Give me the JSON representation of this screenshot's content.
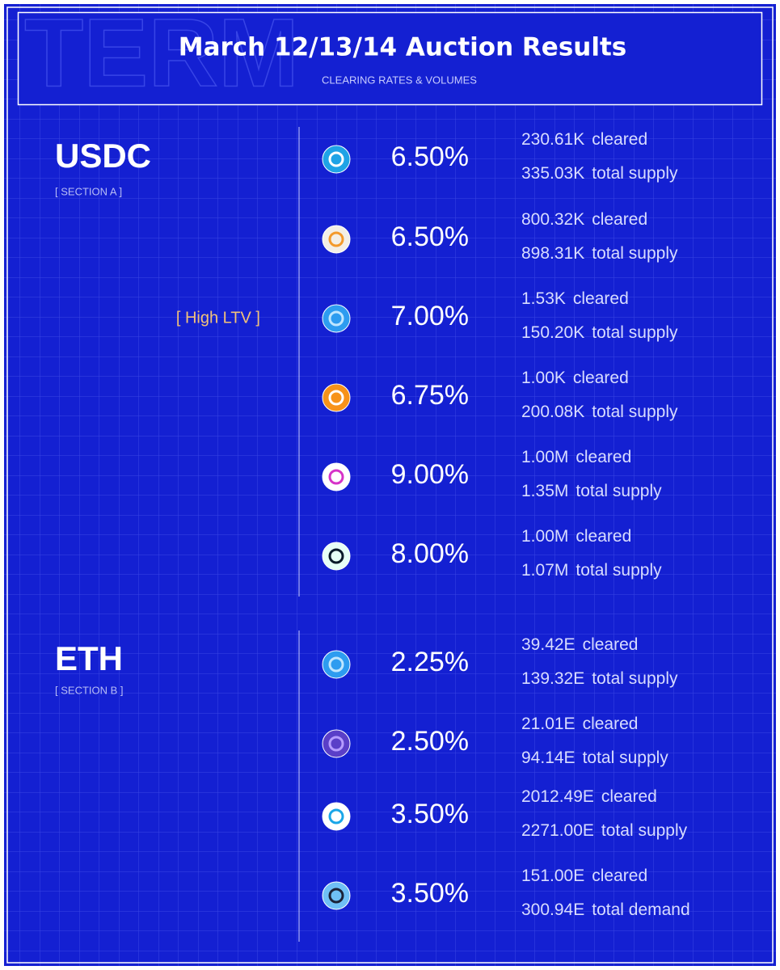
{
  "header": {
    "watermark": "TERM",
    "title": "March 12/13/14 Auction Results",
    "subtitle": "CLEARING RATES & VOLUMES"
  },
  "sections": [
    {
      "name": "USDC",
      "label": "[ SECTION A ]",
      "rows": [
        {
          "rate": "6.50%",
          "lines": [
            [
              "230.61K",
              "cleared"
            ],
            [
              "335.03K",
              "total supply"
            ]
          ]
        },
        {
          "rate": "6.50%",
          "lines": [
            [
              "800.32K",
              "cleared"
            ],
            [
              "898.31K",
              "total supply"
            ]
          ]
        },
        {
          "note": "[ High LTV ]",
          "rate": "7.00%",
          "lines": [
            [
              "1.53K",
              "cleared"
            ],
            [
              "150.20K",
              "total supply"
            ]
          ]
        },
        {
          "rate": "6.75%",
          "lines": [
            [
              "1.00K",
              "cleared"
            ],
            [
              "200.08K",
              "total supply"
            ]
          ]
        },
        {
          "rate": "9.00%",
          "lines": [
            [
              "1.00M",
              "cleared"
            ],
            [
              "1.35M",
              "total supply"
            ]
          ]
        },
        {
          "rate": "8.00%",
          "lines": [
            [
              "1.00M",
              "cleared"
            ],
            [
              "1.07M",
              "total supply"
            ]
          ]
        }
      ]
    },
    {
      "name": "ETH",
      "label": "[ SECTION B ]",
      "rows": [
        {
          "rate": "2.25%",
          "lines": [
            [
              "39.42E",
              "cleared"
            ],
            [
              "139.32E",
              "total supply"
            ]
          ]
        },
        {
          "rate": "2.50%",
          "lines": [
            [
              "21.01E",
              "cleared"
            ],
            [
              "94.14E",
              "total supply"
            ]
          ]
        },
        {
          "rate": "3.50%",
          "lines": [
            [
              "2012.49E",
              "cleared"
            ],
            [
              "2271.00E",
              "total supply"
            ]
          ]
        },
        {
          "rate": "3.50%",
          "lines": [
            [
              "151.00E",
              "cleared"
            ],
            [
              "300.94E",
              "total demand"
            ]
          ]
        }
      ]
    }
  ]
}
